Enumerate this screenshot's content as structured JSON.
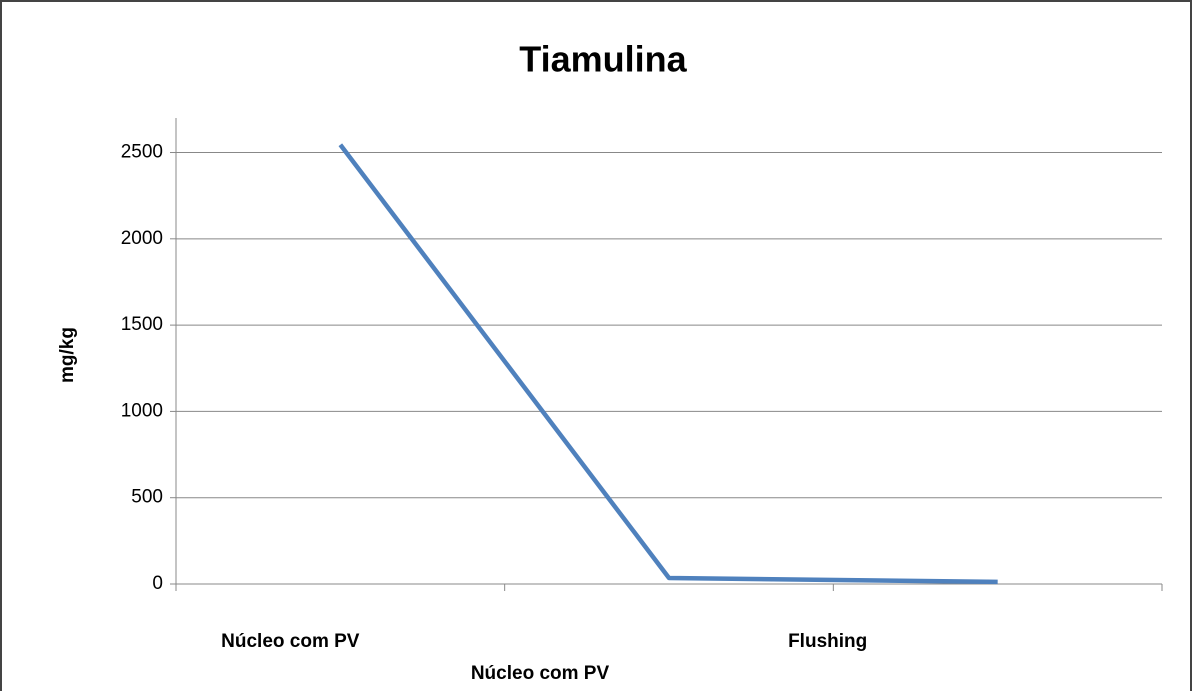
{
  "chart_data": {
    "type": "line",
    "title": "Tiamulina",
    "x_label": "Núcleo com PV",
    "y_label": "mg/kg",
    "categories": [
      "Núcleo com PV",
      null,
      "Flushing"
    ],
    "series": [
      {
        "name": "Tiamulina",
        "color": "#4f81bd",
        "values": [
          2545,
          35,
          12
        ]
      }
    ],
    "ylim": [
      0,
      2700
    ],
    "yticks": [
      0,
      500,
      1000,
      1500,
      2000,
      2500
    ],
    "grid": true
  }
}
